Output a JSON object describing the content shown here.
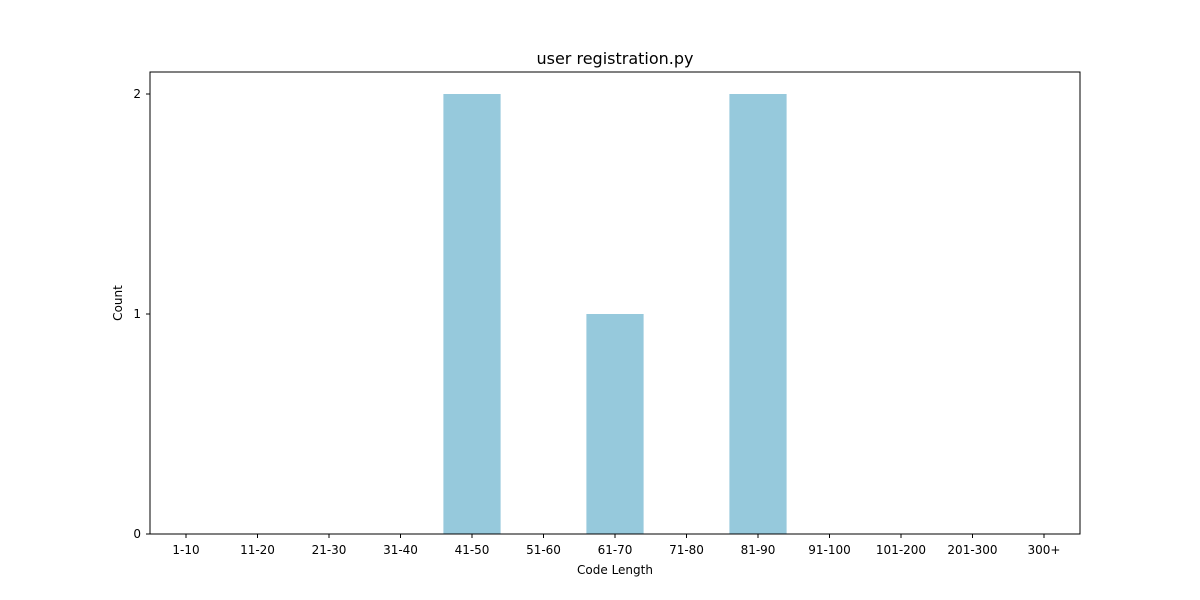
{
  "chart_data": {
    "type": "bar",
    "title": "user registration.py",
    "xlabel": "Code Length",
    "ylabel": "Count",
    "categories": [
      "1-10",
      "11-20",
      "21-30",
      "31-40",
      "41-50",
      "51-60",
      "61-70",
      "71-80",
      "81-90",
      "91-100",
      "101-200",
      "201-300",
      "300+"
    ],
    "values": [
      0,
      0,
      0,
      0,
      2,
      0,
      1,
      0,
      2,
      0,
      0,
      0,
      0
    ],
    "yticks": [
      0,
      1,
      2
    ],
    "ylim": [
      0,
      2.1
    ],
    "grid": false,
    "bar_color": "#96c9dc"
  }
}
